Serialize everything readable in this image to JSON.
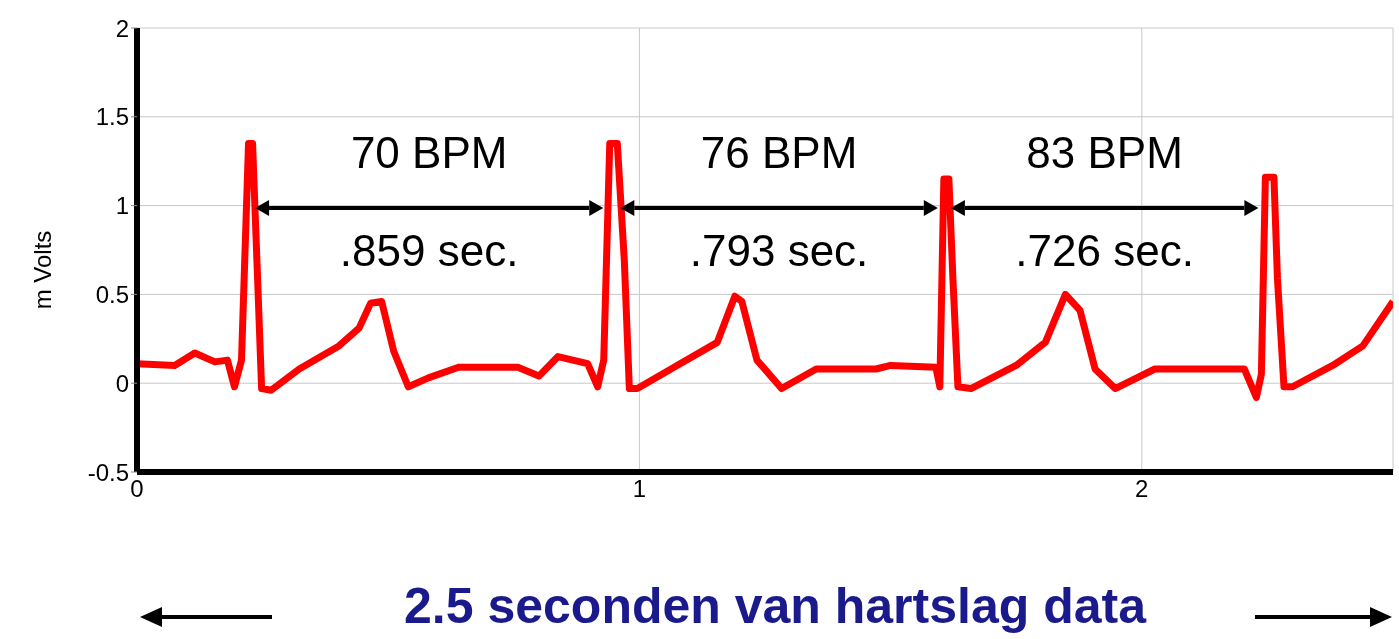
{
  "chart_data": {
    "type": "line",
    "xlabel": "2.5 seconden van hartslag data",
    "ylabel": "m Volts",
    "xlim": [
      0,
      2.5
    ],
    "xticks": [
      0,
      1,
      2
    ],
    "ylim": [
      -0.5,
      2
    ],
    "yticks": [
      -0.5,
      0,
      0.5,
      1,
      1.5,
      2
    ],
    "grid": true,
    "marker": "none",
    "line_style": "solid",
    "series": [
      {
        "color": "#ff0000",
        "x": [
          0,
          0.075,
          0.115,
          0.155,
          0.18,
          0.194,
          0.208,
          0.222,
          0.23,
          0.24,
          0.248,
          0.267,
          0.323,
          0.402,
          0.442,
          0.465,
          0.487,
          0.511,
          0.54,
          0.58,
          0.64,
          0.758,
          0.8,
          0.838,
          0.897,
          0.917,
          0.929,
          0.941,
          0.956,
          0.97,
          0.98,
          0.996,
          1.075,
          1.155,
          1.19,
          1.204,
          1.234,
          1.283,
          1.352,
          1.471,
          1.5,
          1.59,
          1.598,
          1.606,
          1.616,
          1.624,
          1.634,
          1.66,
          1.75,
          1.808,
          1.848,
          1.877,
          1.907,
          1.947,
          2.026,
          2.145,
          2.204,
          2.228,
          2.238,
          2.246,
          2.263,
          2.27,
          2.283,
          2.3,
          2.38,
          2.44,
          2.5
        ],
        "values": [
          0.11,
          0.1,
          0.17,
          0.12,
          0.13,
          -0.02,
          0.13,
          1.35,
          1.35,
          0.59,
          -0.03,
          -0.04,
          0.08,
          0.21,
          0.31,
          0.45,
          0.46,
          0.18,
          -0.02,
          0.03,
          0.09,
          0.09,
          0.04,
          0.15,
          0.11,
          -0.02,
          0.13,
          1.35,
          1.35,
          0.69,
          -0.03,
          -0.03,
          0.1,
          0.23,
          0.49,
          0.46,
          0.13,
          -0.03,
          0.08,
          0.08,
          0.1,
          0.09,
          -0.02,
          1.15,
          1.15,
          0.59,
          -0.02,
          -0.03,
          0.1,
          0.23,
          0.5,
          0.41,
          0.08,
          -0.03,
          0.08,
          0.08,
          0.08,
          -0.08,
          0.05,
          1.16,
          1.16,
          0.59,
          -0.02,
          -0.02,
          0.1,
          0.21,
          0.46
        ]
      }
    ],
    "annotations": [
      "70 BPM",
      ".859 sec.",
      "76 BPM",
      ".793 sec.",
      "83 BPM",
      ".726 sec."
    ]
  }
}
